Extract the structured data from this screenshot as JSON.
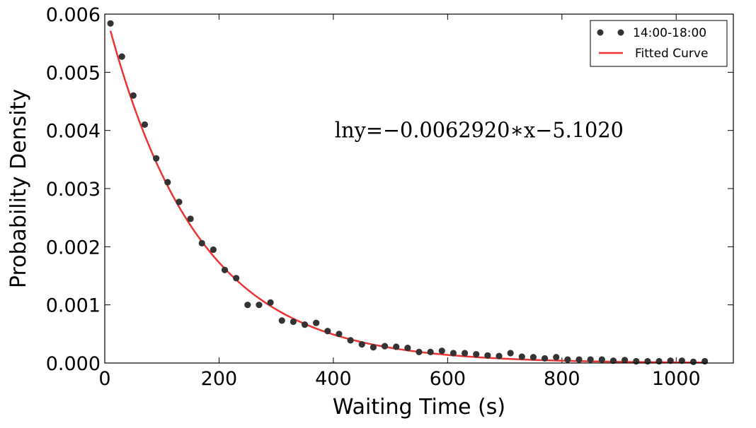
{
  "chart_data": {
    "type": "scatter",
    "title": "",
    "xlabel": "Waiting Time (s)",
    "ylabel": "Probability Density",
    "xlim": [
      0,
      1100
    ],
    "ylim": [
      0,
      0.006
    ],
    "xticks": [
      0,
      200,
      400,
      600,
      800,
      1000
    ],
    "yticks": [
      0.0,
      0.001,
      0.002,
      0.003,
      0.004,
      0.005,
      0.006
    ],
    "xtick_labels": [
      "0",
      "200",
      "400",
      "600",
      "800",
      "1000"
    ],
    "ytick_labels": [
      "0.000",
      "0.001",
      "0.002",
      "0.003",
      "0.004",
      "0.005",
      "0.006"
    ],
    "grid": false,
    "legend_position": "top-right",
    "series": [
      {
        "name": "14:00-18:00",
        "kind": "scatter",
        "color": "#333333",
        "x": [
          10,
          30,
          50,
          70,
          90,
          110,
          130,
          150,
          170,
          190,
          210,
          230,
          250,
          270,
          290,
          310,
          330,
          350,
          370,
          390,
          410,
          430,
          450,
          470,
          490,
          510,
          530,
          550,
          570,
          590,
          610,
          630,
          650,
          670,
          690,
          710,
          730,
          750,
          770,
          790,
          810,
          830,
          850,
          870,
          890,
          910,
          930,
          950,
          970,
          990,
          1010,
          1030,
          1050
        ],
        "y": [
          0.00584,
          0.00527,
          0.0046,
          0.0041,
          0.00352,
          0.00311,
          0.00277,
          0.00248,
          0.00206,
          0.00195,
          0.0016,
          0.00146,
          0.001,
          0.001,
          0.00104,
          0.00073,
          0.00071,
          0.00066,
          0.00069,
          0.00055,
          0.0005,
          0.00039,
          0.00032,
          0.00027,
          0.00029,
          0.00028,
          0.00026,
          0.00019,
          0.00019,
          0.00021,
          0.00017,
          0.00017,
          0.00015,
          0.00013,
          0.00012,
          0.00017,
          0.00011,
          0.0001,
          8e-05,
          0.0001,
          6e-05,
          6e-05,
          6e-05,
          6e-05,
          4e-05,
          5e-05,
          3e-05,
          3e-05,
          3e-05,
          4e-05,
          4e-05,
          2e-05,
          3e-05
        ]
      },
      {
        "name": "Fitted Curve",
        "kind": "line",
        "color": "#ee3333",
        "function": "exp(-0.0062920*x - 5.1020)",
        "slope": -0.006292,
        "intercept": -5.102,
        "x_range": [
          10,
          1050
        ]
      }
    ],
    "annotations": [
      {
        "text": "lny=−0.0062920∗x−5.1020",
        "x": 400,
        "y": 0.004
      }
    ]
  }
}
